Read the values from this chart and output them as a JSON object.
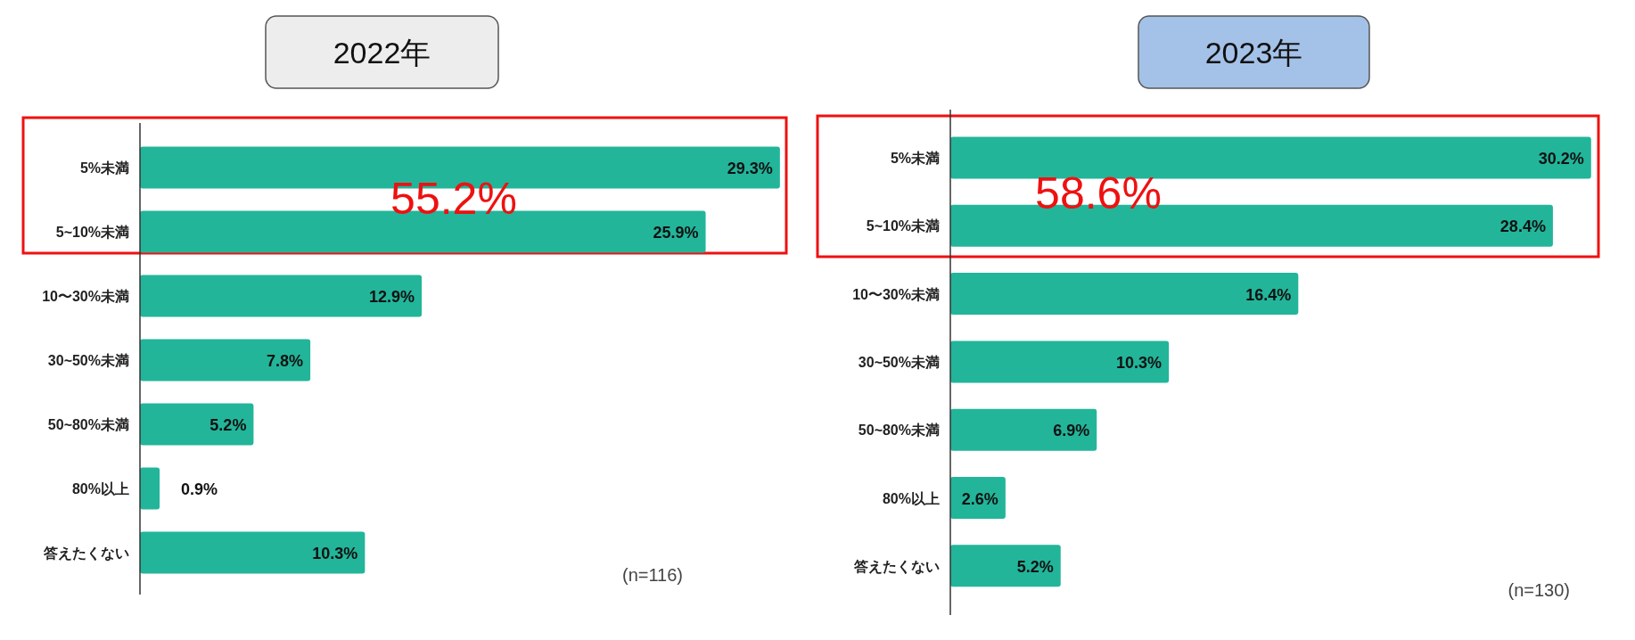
{
  "chart_data": [
    {
      "type": "bar",
      "orientation": "horizontal",
      "title": "2022年",
      "categories": [
        "5%未満",
        "5~10%未満",
        "10〜30%未満",
        "30~50%未満",
        "50~80%未満",
        "80%以上",
        "答えたくない"
      ],
      "values": [
        29.3,
        25.9,
        12.9,
        7.8,
        5.2,
        0.9,
        10.3
      ],
      "value_labels": [
        "29.3%",
        "25.9%",
        "12.9%",
        "7.8%",
        "5.2%",
        "0.9%",
        "10.3%"
      ],
      "color": "#22b59a",
      "annotations": [
        "55.2%",
        "(n=116)"
      ]
    },
    {
      "type": "bar",
      "orientation": "horizontal",
      "title": "2023年",
      "categories": [
        "5%未満",
        "5~10%未満",
        "10〜30%未満",
        "30~50%未満",
        "50~80%未満",
        "80%以上",
        "答えたくない"
      ],
      "values": [
        30.2,
        28.4,
        16.4,
        10.3,
        6.9,
        2.6,
        5.2
      ],
      "value_labels": [
        "30.2%",
        "28.4%",
        "16.4%",
        "10.3%",
        "6.9%",
        "2.6%",
        "5.2%"
      ],
      "color": "#22b59a",
      "annotations": [
        "58.6%",
        "(n=130)"
      ]
    }
  ]
}
